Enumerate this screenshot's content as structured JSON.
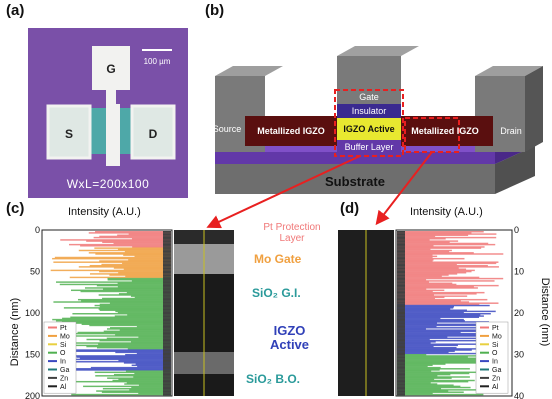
{
  "panels": {
    "a": {
      "label": "(a)",
      "scale_bar": "100 µm",
      "gate": "G",
      "source": "S",
      "drain": "D",
      "dims": "WxL=200x100",
      "colors": {
        "background": "#7a50a8",
        "metal": "#f2f2f0",
        "active": "#4ea8a8"
      }
    },
    "b": {
      "label": "(b)",
      "layers": {
        "gate": "Gate",
        "insulator": "Insulator",
        "active": "IGZO Active",
        "buffer": "Buffer Layer",
        "substrate": "Substrate",
        "left_metal": "Metallized IGZO",
        "right_metal": "Metallized IGZO",
        "source": "Source",
        "drain": "Drain"
      }
    },
    "c": {
      "label": "(c)",
      "xlabel": "Intensity (A.U.)",
      "ylabel": "Distance (nm)",
      "yticks": [
        "0",
        "50",
        "100",
        "150",
        "200"
      ],
      "legend": [
        "Pt",
        "Mo",
        "Si",
        "O",
        "In",
        "Ga",
        "Zn",
        "Al"
      ]
    },
    "d": {
      "label": "(d)",
      "xlabel": "Intensity (A.U.)",
      "ylabel": "Distance (nm)",
      "yticks": [
        "0",
        "10",
        "20",
        "30",
        "40"
      ],
      "legend": [
        "Pt",
        "Mo",
        "Si",
        "O",
        "In",
        "Ga",
        "Zn",
        "Al"
      ]
    },
    "annotations": {
      "pt": "Pt Protection\nLayer",
      "mo": "Mo Gate",
      "sio2_gi": "SiO₂ G.I.",
      "igzo": "IGZO\nActive",
      "sio2_bo": "SiO₂ B.O."
    }
  },
  "colors": {
    "Pt": "#f07878",
    "Mo": "#f0a040",
    "Si": "#e8d040",
    "O": "#50b050",
    "In": "#3a48c0",
    "Ga": "#207878",
    "Zn": "#404040",
    "Al": "#202020",
    "annot_pt": "#f07878",
    "annot_mo": "#f0a040",
    "annot_sio2": "#2a9a9a",
    "annot_igzo": "#3040b8"
  },
  "chart_data": [
    {
      "type": "line",
      "panel": "c",
      "xlabel": "Intensity (A.U.)",
      "ylabel": "Distance (nm)",
      "ylim": [
        0,
        200
      ],
      "y_reversed": true,
      "series": [
        {
          "name": "Pt",
          "x": [],
          "y": []
        },
        {
          "name": "Mo",
          "x": [],
          "y": []
        },
        {
          "name": "Si",
          "x": [],
          "y": []
        },
        {
          "name": "O",
          "x": [],
          "y": []
        },
        {
          "name": "In",
          "x": [],
          "y": []
        },
        {
          "name": "Ga",
          "x": [],
          "y": []
        },
        {
          "name": "Zn",
          "x": [],
          "y": []
        },
        {
          "name": "Al",
          "x": [],
          "y": []
        }
      ],
      "legend_position": "bottom-left"
    },
    {
      "type": "line",
      "panel": "d",
      "xlabel": "Intensity (A.U.)",
      "ylabel": "Distance (nm)",
      "ylim": [
        0,
        40
      ],
      "y_reversed": true,
      "series": [
        {
          "name": "Pt",
          "x": [],
          "y": []
        },
        {
          "name": "Mo",
          "x": [],
          "y": []
        },
        {
          "name": "Si",
          "x": [],
          "y": []
        },
        {
          "name": "O",
          "x": [],
          "y": []
        },
        {
          "name": "In",
          "x": [],
          "y": []
        },
        {
          "name": "Ga",
          "x": [],
          "y": []
        },
        {
          "name": "Zn",
          "x": [],
          "y": []
        },
        {
          "name": "Al",
          "x": [],
          "y": []
        }
      ],
      "legend_position": "bottom-right"
    }
  ]
}
